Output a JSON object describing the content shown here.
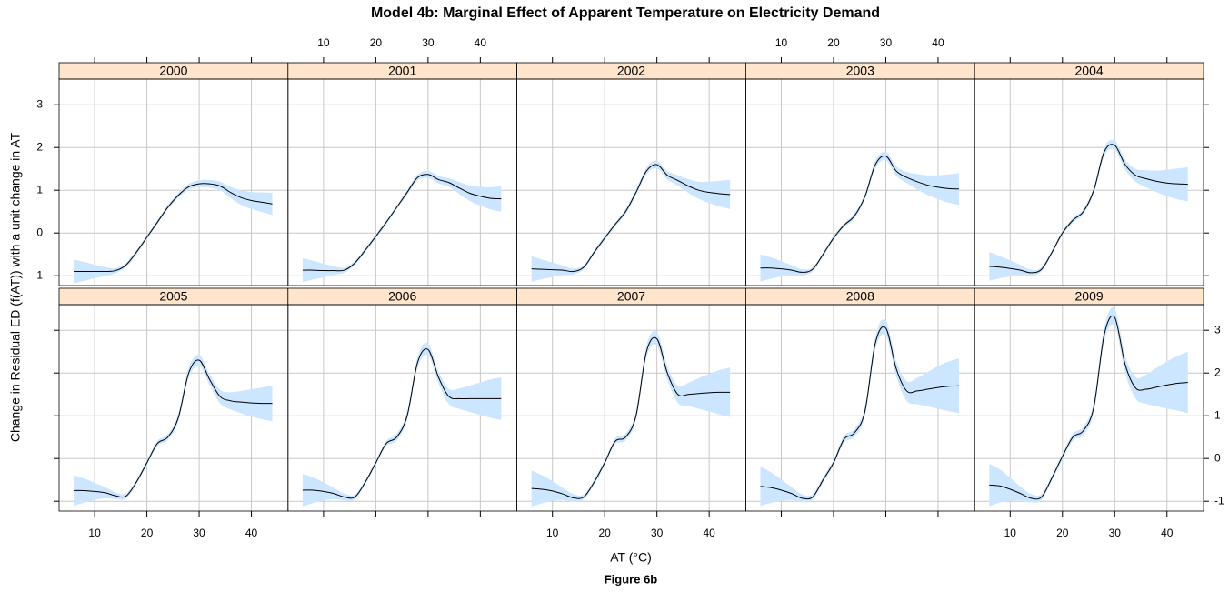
{
  "title": "Model 4b: Marginal Effect of Apparent Temperature on Electricity Demand",
  "x_label": "AT (°C)",
  "y_label": "Change in Residual ED (f(AT)) with a unit change in AT",
  "caption": "Figure 6b",
  "chart_data": [
    {
      "type": "line",
      "title": "2000",
      "color": "#000000",
      "band_color": "#cce6ff",
      "grid": true,
      "xlim": [
        3.2,
        47
      ],
      "ylim": [
        -1.23,
        3.6
      ],
      "xticks": [
        10,
        20,
        30,
        40
      ],
      "yticks": [
        -1,
        0,
        1,
        2,
        3
      ],
      "x": [
        6,
        8,
        10,
        12,
        14,
        16,
        18,
        20,
        22,
        24,
        26,
        28,
        30,
        32,
        34,
        36,
        38,
        40,
        42,
        44
      ],
      "values": [
        -0.9,
        -0.9,
        -0.9,
        -0.9,
        -0.88,
        -0.75,
        -0.45,
        -0.1,
        0.25,
        0.6,
        0.88,
        1.08,
        1.15,
        1.15,
        1.1,
        0.95,
        0.83,
        0.76,
        0.72,
        0.68
      ],
      "errors": [
        0.28,
        0.22,
        0.16,
        0.1,
        0.06,
        0.05,
        0.05,
        0.05,
        0.05,
        0.05,
        0.06,
        0.07,
        0.08,
        0.09,
        0.1,
        0.13,
        0.17,
        0.2,
        0.23,
        0.26
      ]
    },
    {
      "type": "line",
      "title": "2001",
      "color": "#000000",
      "band_color": "#cce6ff",
      "grid": true,
      "xlim": [
        3.2,
        47
      ],
      "ylim": [
        -1.23,
        3.6
      ],
      "xticks": [
        10,
        20,
        30,
        40
      ],
      "yticks": [
        -1,
        0,
        1,
        2,
        3
      ],
      "x": [
        6,
        8,
        10,
        12,
        14,
        16,
        18,
        20,
        22,
        24,
        26,
        28,
        30,
        32,
        34,
        36,
        38,
        40,
        42,
        44
      ],
      "values": [
        -0.87,
        -0.87,
        -0.88,
        -0.88,
        -0.87,
        -0.7,
        -0.4,
        -0.08,
        0.25,
        0.6,
        0.95,
        1.3,
        1.37,
        1.25,
        1.18,
        1.05,
        0.93,
        0.86,
        0.81,
        0.8
      ],
      "errors": [
        0.28,
        0.22,
        0.16,
        0.1,
        0.06,
        0.05,
        0.05,
        0.05,
        0.05,
        0.05,
        0.06,
        0.07,
        0.08,
        0.09,
        0.1,
        0.14,
        0.18,
        0.22,
        0.26,
        0.3
      ]
    },
    {
      "type": "line",
      "title": "2002",
      "color": "#000000",
      "band_color": "#cce6ff",
      "grid": true,
      "xlim": [
        3.2,
        47
      ],
      "ylim": [
        -1.23,
        3.6
      ],
      "xticks": [
        10,
        20,
        30,
        40
      ],
      "yticks": [
        -1,
        0,
        1,
        2,
        3
      ],
      "x": [
        6,
        8,
        10,
        12,
        14,
        16,
        18,
        20,
        22,
        24,
        26,
        28,
        30,
        32,
        34,
        36,
        38,
        40,
        42,
        44
      ],
      "values": [
        -0.84,
        -0.85,
        -0.86,
        -0.87,
        -0.9,
        -0.8,
        -0.45,
        -0.12,
        0.2,
        0.5,
        0.95,
        1.45,
        1.6,
        1.35,
        1.23,
        1.1,
        1.0,
        0.95,
        0.92,
        0.9
      ],
      "errors": [
        0.3,
        0.23,
        0.17,
        0.11,
        0.07,
        0.05,
        0.05,
        0.05,
        0.05,
        0.06,
        0.07,
        0.08,
        0.09,
        0.1,
        0.12,
        0.16,
        0.2,
        0.25,
        0.3,
        0.34
      ]
    },
    {
      "type": "line",
      "title": "2003",
      "color": "#000000",
      "band_color": "#cce6ff",
      "grid": true,
      "xlim": [
        3.2,
        47
      ],
      "ylim": [
        -1.23,
        3.6
      ],
      "xticks": [
        10,
        20,
        30,
        40
      ],
      "yticks": [
        -1,
        0,
        1,
        2,
        3
      ],
      "x": [
        6,
        8,
        10,
        12,
        14,
        16,
        18,
        20,
        22,
        24,
        26,
        28,
        30,
        32,
        34,
        36,
        38,
        40,
        42,
        44
      ],
      "values": [
        -0.82,
        -0.82,
        -0.84,
        -0.87,
        -0.92,
        -0.85,
        -0.5,
        -0.12,
        0.18,
        0.4,
        0.85,
        1.6,
        1.8,
        1.45,
        1.3,
        1.2,
        1.12,
        1.07,
        1.04,
        1.03
      ],
      "errors": [
        0.32,
        0.25,
        0.18,
        0.12,
        0.07,
        0.05,
        0.05,
        0.05,
        0.05,
        0.06,
        0.07,
        0.09,
        0.1,
        0.11,
        0.13,
        0.18,
        0.23,
        0.28,
        0.33,
        0.37
      ]
    },
    {
      "type": "line",
      "title": "2004",
      "color": "#000000",
      "band_color": "#cce6ff",
      "grid": true,
      "xlim": [
        3.2,
        47
      ],
      "ylim": [
        -1.23,
        3.6
      ],
      "xticks": [
        10,
        20,
        30,
        40
      ],
      "yticks": [
        -1,
        0,
        1,
        2,
        3
      ],
      "x": [
        6,
        8,
        10,
        12,
        14,
        16,
        18,
        20,
        22,
        24,
        26,
        28,
        30,
        32,
        34,
        36,
        38,
        40,
        42,
        44
      ],
      "values": [
        -0.78,
        -0.8,
        -0.83,
        -0.87,
        -0.93,
        -0.85,
        -0.45,
        0.0,
        0.3,
        0.5,
        1.0,
        1.9,
        2.05,
        1.6,
        1.35,
        1.27,
        1.21,
        1.17,
        1.15,
        1.14
      ],
      "errors": [
        0.34,
        0.26,
        0.19,
        0.12,
        0.07,
        0.05,
        0.05,
        0.05,
        0.06,
        0.06,
        0.08,
        0.1,
        0.11,
        0.12,
        0.15,
        0.2,
        0.25,
        0.31,
        0.36,
        0.4
      ]
    },
    {
      "type": "line",
      "title": "2005",
      "color": "#000000",
      "band_color": "#cce6ff",
      "grid": true,
      "xlim": [
        3.2,
        47
      ],
      "ylim": [
        -1.23,
        3.6
      ],
      "xticks": [
        10,
        20,
        30,
        40
      ],
      "yticks": [
        -1,
        0,
        1,
        2,
        3
      ],
      "x": [
        6,
        8,
        10,
        12,
        14,
        16,
        18,
        20,
        22,
        24,
        26,
        28,
        30,
        32,
        34,
        36,
        38,
        40,
        42,
        44
      ],
      "values": [
        -0.75,
        -0.75,
        -0.77,
        -0.8,
        -0.87,
        -0.88,
        -0.55,
        -0.1,
        0.35,
        0.5,
        0.95,
        2.0,
        2.3,
        1.85,
        1.45,
        1.35,
        1.32,
        1.3,
        1.29,
        1.29
      ],
      "errors": [
        0.36,
        0.28,
        0.2,
        0.13,
        0.08,
        0.06,
        0.05,
        0.06,
        0.06,
        0.07,
        0.09,
        0.12,
        0.13,
        0.13,
        0.16,
        0.2,
        0.26,
        0.32,
        0.37,
        0.42
      ]
    },
    {
      "type": "line",
      "title": "2006",
      "color": "#000000",
      "band_color": "#cce6ff",
      "grid": true,
      "xlim": [
        3.2,
        47
      ],
      "ylim": [
        -1.23,
        3.6
      ],
      "xticks": [
        10,
        20,
        30,
        40
      ],
      "yticks": [
        -1,
        0,
        1,
        2,
        3
      ],
      "x": [
        6,
        8,
        10,
        12,
        14,
        16,
        18,
        20,
        22,
        24,
        26,
        28,
        30,
        32,
        34,
        36,
        38,
        40,
        42,
        44
      ],
      "values": [
        -0.74,
        -0.74,
        -0.77,
        -0.82,
        -0.9,
        -0.9,
        -0.55,
        -0.1,
        0.35,
        0.5,
        1.0,
        2.25,
        2.55,
        1.9,
        1.45,
        1.4,
        1.4,
        1.4,
        1.4,
        1.4
      ],
      "errors": [
        0.38,
        0.3,
        0.21,
        0.13,
        0.08,
        0.06,
        0.05,
        0.06,
        0.06,
        0.08,
        0.1,
        0.13,
        0.14,
        0.14,
        0.18,
        0.24,
        0.31,
        0.38,
        0.45,
        0.5
      ]
    },
    {
      "type": "line",
      "title": "2007",
      "color": "#000000",
      "band_color": "#cce6ff",
      "grid": true,
      "xlim": [
        3.2,
        47
      ],
      "ylim": [
        -1.23,
        3.6
      ],
      "xticks": [
        10,
        20,
        30,
        40
      ],
      "yticks": [
        -1,
        0,
        1,
        2,
        3
      ],
      "x": [
        6,
        8,
        10,
        12,
        14,
        16,
        18,
        20,
        22,
        24,
        26,
        28,
        30,
        32,
        34,
        36,
        38,
        40,
        42,
        44
      ],
      "values": [
        -0.7,
        -0.72,
        -0.76,
        -0.83,
        -0.92,
        -0.9,
        -0.55,
        -0.1,
        0.4,
        0.5,
        1.0,
        2.5,
        2.8,
        2.0,
        1.5,
        1.5,
        1.52,
        1.54,
        1.55,
        1.55
      ],
      "errors": [
        0.42,
        0.33,
        0.23,
        0.14,
        0.09,
        0.06,
        0.06,
        0.06,
        0.07,
        0.08,
        0.1,
        0.14,
        0.16,
        0.16,
        0.2,
        0.27,
        0.36,
        0.44,
        0.52,
        0.58
      ]
    },
    {
      "type": "line",
      "title": "2008",
      "color": "#000000",
      "band_color": "#cce6ff",
      "grid": true,
      "xlim": [
        3.2,
        47
      ],
      "ylim": [
        -1.23,
        3.6
      ],
      "xticks": [
        10,
        20,
        30,
        40
      ],
      "yticks": [
        -1,
        0,
        1,
        2,
        3
      ],
      "x": [
        6,
        8,
        10,
        12,
        14,
        16,
        18,
        20,
        22,
        24,
        26,
        28,
        30,
        32,
        34,
        36,
        38,
        40,
        42,
        44
      ],
      "values": [
        -0.65,
        -0.68,
        -0.74,
        -0.82,
        -0.93,
        -0.9,
        -0.5,
        -0.1,
        0.45,
        0.6,
        1.1,
        2.7,
        3.05,
        2.1,
        1.58,
        1.58,
        1.62,
        1.66,
        1.69,
        1.7
      ],
      "errors": [
        0.46,
        0.36,
        0.25,
        0.15,
        0.09,
        0.07,
        0.06,
        0.07,
        0.08,
        0.09,
        0.11,
        0.15,
        0.18,
        0.18,
        0.23,
        0.31,
        0.4,
        0.5,
        0.58,
        0.64
      ]
    },
    {
      "type": "line",
      "title": "2009",
      "color": "#000000",
      "band_color": "#cce6ff",
      "grid": true,
      "xlim": [
        3.2,
        47
      ],
      "ylim": [
        -1.23,
        3.6
      ],
      "xticks": [
        10,
        20,
        30,
        40
      ],
      "yticks": [
        -1,
        0,
        1,
        2,
        3
      ],
      "x": [
        6,
        8,
        10,
        12,
        14,
        16,
        18,
        20,
        22,
        24,
        26,
        28,
        30,
        32,
        34,
        36,
        38,
        40,
        42,
        44
      ],
      "values": [
        -0.62,
        -0.64,
        -0.72,
        -0.82,
        -0.93,
        -0.9,
        -0.45,
        0.05,
        0.5,
        0.65,
        1.2,
        2.9,
        3.3,
        2.2,
        1.65,
        1.62,
        1.67,
        1.72,
        1.76,
        1.78
      ],
      "errors": [
        0.5,
        0.39,
        0.27,
        0.16,
        0.1,
        0.07,
        0.06,
        0.07,
        0.08,
        0.1,
        0.12,
        0.17,
        0.2,
        0.2,
        0.25,
        0.34,
        0.45,
        0.55,
        0.64,
        0.72
      ]
    }
  ]
}
